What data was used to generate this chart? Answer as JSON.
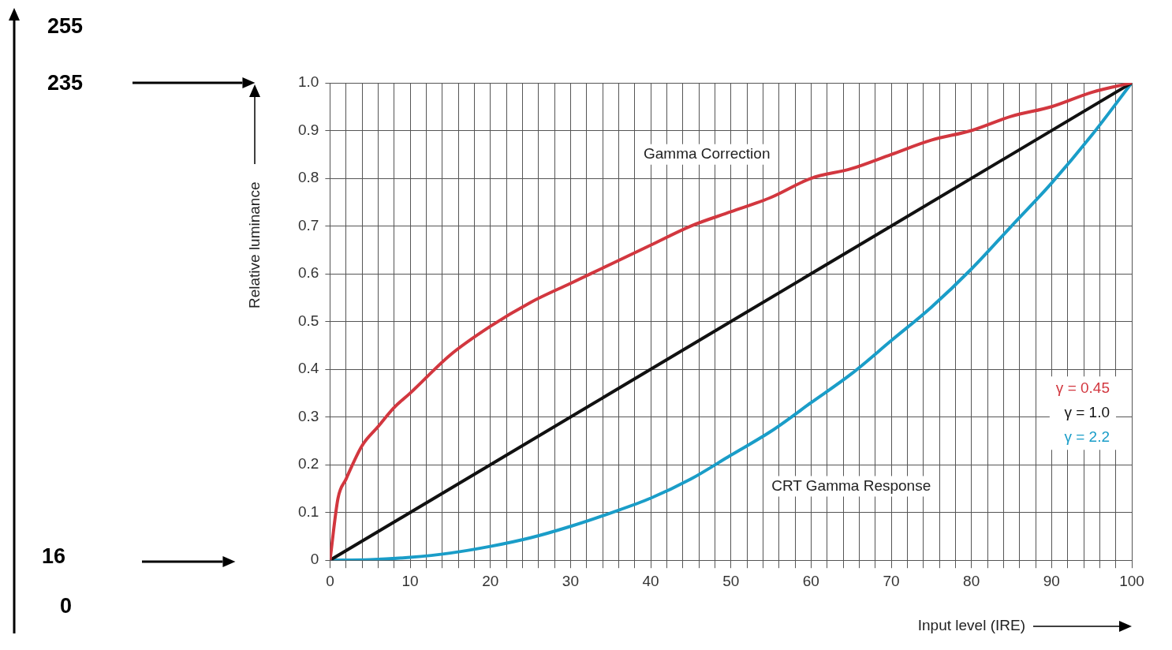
{
  "chart_data": {
    "type": "line",
    "xlabel": "Input level (IRE)",
    "ylabel": "Relative luminance",
    "xlim": [
      0,
      100
    ],
    "ylim": [
      0,
      1
    ],
    "xticks": [
      0,
      {
        "value": 2,
        "label": null
      },
      {
        "value": 4,
        "label": null
      },
      {
        "value": 6,
        "label": null
      },
      {
        "value": 8,
        "label": null
      },
      10,
      {
        "value": 12,
        "label": null
      },
      {
        "value": 14,
        "label": null
      },
      {
        "value": 16,
        "label": null
      },
      {
        "value": 18,
        "label": null
      },
      20,
      {
        "value": 22,
        "label": null
      },
      {
        "value": 24,
        "label": null
      },
      {
        "value": 26,
        "label": null
      },
      {
        "value": 28,
        "label": null
      },
      30,
      {
        "value": 32,
        "label": null
      },
      {
        "value": 34,
        "label": null
      },
      {
        "value": 36,
        "label": null
      },
      {
        "value": 38,
        "label": null
      },
      40,
      {
        "value": 42,
        "label": null
      },
      {
        "value": 44,
        "label": null
      },
      {
        "value": 46,
        "label": null
      },
      {
        "value": 48,
        "label": null
      },
      50,
      {
        "value": 52,
        "label": null
      },
      {
        "value": 54,
        "label": null
      },
      {
        "value": 56,
        "label": null
      },
      {
        "value": 58,
        "label": null
      },
      60,
      {
        "value": 62,
        "label": null
      },
      {
        "value": 64,
        "label": null
      },
      {
        "value": 66,
        "label": null
      },
      {
        "value": 68,
        "label": null
      },
      70,
      {
        "value": 72,
        "label": null
      },
      {
        "value": 74,
        "label": null
      },
      {
        "value": 76,
        "label": null
      },
      {
        "value": 78,
        "label": null
      },
      80,
      {
        "value": 82,
        "label": null
      },
      {
        "value": 84,
        "label": null
      },
      {
        "value": 86,
        "label": null
      },
      {
        "value": 88,
        "label": null
      },
      90,
      {
        "value": 92,
        "label": null
      },
      {
        "value": 94,
        "label": null
      },
      {
        "value": 96,
        "label": null
      },
      {
        "value": 98,
        "label": null
      },
      100
    ],
    "yticks": [
      0,
      0.1,
      0.2,
      0.3,
      0.4,
      0.5,
      0.6,
      0.7,
      0.8,
      0.9,
      {
        "value": 1,
        "label": "1.0"
      }
    ],
    "grid": true,
    "legend": "bottom right",
    "marker": "none",
    "line_style": "solid",
    "series": [
      {
        "name": "γ = 0.45",
        "color": "#d2373f",
        "x": [
          0,
          1,
          2,
          4,
          6,
          8,
          10,
          15,
          20,
          25,
          30,
          35,
          40,
          45,
          50,
          55,
          60,
          65,
          70,
          75,
          80,
          85,
          90,
          95,
          100
        ],
        "values": [
          0,
          0.13,
          0.17,
          0.24,
          0.28,
          0.32,
          0.35,
          0.43,
          0.49,
          0.54,
          0.58,
          0.62,
          0.66,
          0.7,
          0.73,
          0.76,
          0.8,
          0.82,
          0.85,
          0.88,
          0.9,
          0.93,
          0.95,
          0.98,
          1
        ]
      },
      {
        "name": "γ = 1.0",
        "color": "#111111",
        "x": [
          0,
          100
        ],
        "values": [
          0,
          1
        ]
      },
      {
        "name": "γ = 2.2",
        "color": "#1a9dc8",
        "x": [
          0,
          5,
          10,
          15,
          20,
          25,
          30,
          35,
          40,
          45,
          50,
          55,
          60,
          65,
          70,
          75,
          80,
          85,
          90,
          95,
          100
        ],
        "values": [
          0,
          0.001,
          0.006,
          0.015,
          0.029,
          0.047,
          0.071,
          0.099,
          0.13,
          0.17,
          0.22,
          0.27,
          0.33,
          0.39,
          0.46,
          0.53,
          0.61,
          0.7,
          0.79,
          0.89,
          1
        ]
      }
    ],
    "annotations": [
      "255",
      "235",
      "16",
      "0",
      "Gamma Correction",
      "CRT Gamma Response"
    ]
  }
}
